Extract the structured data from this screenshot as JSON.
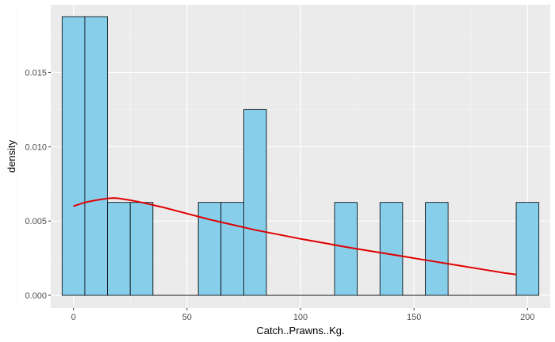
{
  "chart_data": {
    "type": "histogram",
    "title": "",
    "xlabel": "Catch..Prawns..Kg.",
    "ylabel": "density",
    "xlim": [
      -10,
      210
    ],
    "ylim": [
      -0.00085,
      0.01955
    ],
    "x_ticks": [
      0,
      50,
      100,
      150,
      200
    ],
    "x_tick_labels": [
      "0",
      "50",
      "100",
      "150",
      "200"
    ],
    "y_ticks": [
      0,
      0.005,
      0.01,
      0.015
    ],
    "y_tick_labels": [
      "0.000",
      "0.005",
      "0.010",
      "0.015"
    ],
    "grid": true,
    "bin_width": 10,
    "bars": [
      {
        "x_start": -5,
        "x_end": 5,
        "density": 0.01875
      },
      {
        "x_start": 5,
        "x_end": 15,
        "density": 0.01875
      },
      {
        "x_start": 15,
        "x_end": 25,
        "density": 0.00625
      },
      {
        "x_start": 25,
        "x_end": 35,
        "density": 0.00625
      },
      {
        "x_start": 55,
        "x_end": 65,
        "density": 0.00625
      },
      {
        "x_start": 65,
        "x_end": 75,
        "density": 0.00625
      },
      {
        "x_start": 75,
        "x_end": 85,
        "density": 0.0125
      },
      {
        "x_start": 115,
        "x_end": 125,
        "density": 0.00625
      },
      {
        "x_start": 135,
        "x_end": 145,
        "density": 0.00625
      },
      {
        "x_start": 155,
        "x_end": 165,
        "density": 0.00625
      },
      {
        "x_start": 195,
        "x_end": 205,
        "density": 0.00625
      }
    ],
    "density_curve": {
      "x": [
        0,
        5,
        10,
        15,
        18,
        20,
        25,
        30,
        40,
        50,
        60,
        70,
        80,
        90,
        100,
        110,
        120,
        130,
        140,
        150,
        160,
        170,
        180,
        190,
        195
      ],
      "y": [
        0.006,
        0.00625,
        0.0064,
        0.00652,
        0.00655,
        0.00652,
        0.0064,
        0.00625,
        0.0059,
        0.0055,
        0.0051,
        0.00475,
        0.0044,
        0.0041,
        0.0038,
        0.00353,
        0.00325,
        0.003,
        0.00275,
        0.0025,
        0.00225,
        0.002,
        0.00175,
        0.0015,
        0.0014
      ]
    },
    "colors": {
      "panel_background": "#ebebeb",
      "grid_major": "#ffffff",
      "grid_minor": "#f5f5f5",
      "bar_fill": "#87ceeb",
      "bar_outline": "#000000",
      "curve": "#e00000"
    }
  }
}
